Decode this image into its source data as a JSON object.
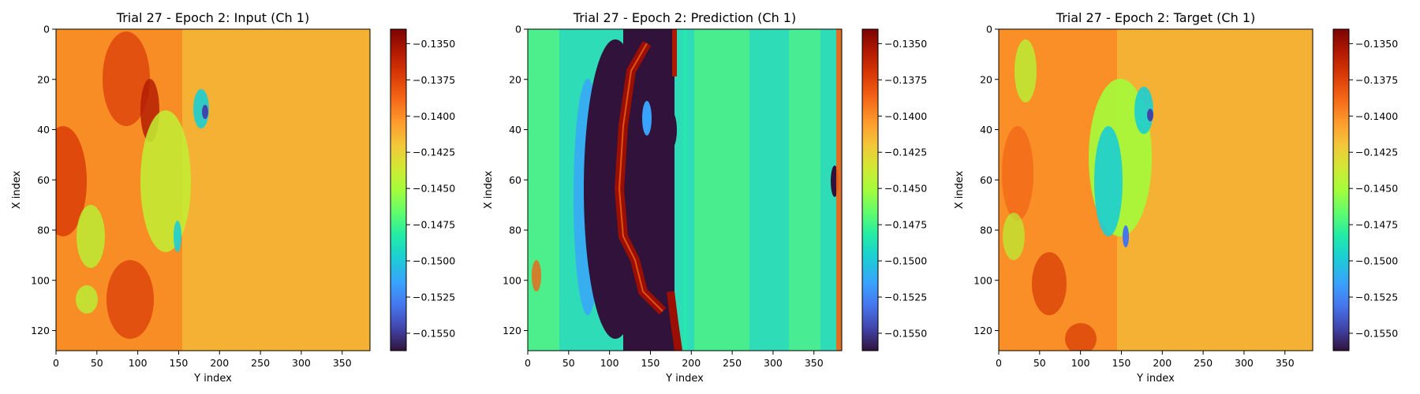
{
  "figure": {
    "colormap": "turbo"
  },
  "chart_data": [
    {
      "type": "heatmap",
      "title": "Trial 27 - Epoch 2: Input (Ch 1)",
      "xlabel": "Y index",
      "ylabel": "X index",
      "x_range": [
        0,
        384
      ],
      "y_range": [
        0,
        128
      ],
      "y_inverted": true,
      "xticks": [
        0,
        50,
        100,
        150,
        200,
        250,
        300,
        350
      ],
      "yticks": [
        0,
        20,
        40,
        60,
        80,
        100,
        120
      ],
      "colorbar": {
        "range": [
          -0.1562,
          -0.134
        ],
        "ticks": [
          -0.135,
          -0.1375,
          -0.14,
          -0.1425,
          -0.145,
          -0.1475,
          -0.15,
          -0.1525,
          -0.155
        ]
      }
    },
    {
      "type": "heatmap",
      "title": "Trial 27 - Epoch 2: Prediction (Ch 1)",
      "xlabel": "Y index",
      "ylabel": "X index",
      "x_range": [
        0,
        384
      ],
      "y_range": [
        0,
        128
      ],
      "y_inverted": true,
      "xticks": [
        0,
        50,
        100,
        150,
        200,
        250,
        300,
        350
      ],
      "yticks": [
        0,
        20,
        40,
        60,
        80,
        100,
        120
      ],
      "colorbar": {
        "range": [
          -0.1562,
          -0.134
        ],
        "ticks": [
          -0.135,
          -0.1375,
          -0.14,
          -0.1425,
          -0.145,
          -0.1475,
          -0.15,
          -0.1525,
          -0.155
        ]
      }
    },
    {
      "type": "heatmap",
      "title": "Trial 27 - Epoch 2: Target (Ch 1)",
      "xlabel": "Y index",
      "ylabel": "X index",
      "x_range": [
        0,
        384
      ],
      "y_range": [
        0,
        128
      ],
      "y_inverted": true,
      "xticks": [
        0,
        50,
        100,
        150,
        200,
        250,
        300,
        350
      ],
      "yticks": [
        0,
        20,
        40,
        60,
        80,
        100,
        120
      ],
      "colorbar": {
        "range": [
          -0.1562,
          -0.134
        ],
        "ticks": [
          -0.135,
          -0.1375,
          -0.14,
          -0.1425,
          -0.145,
          -0.1475,
          -0.15,
          -0.1525,
          -0.155
        ]
      }
    }
  ]
}
